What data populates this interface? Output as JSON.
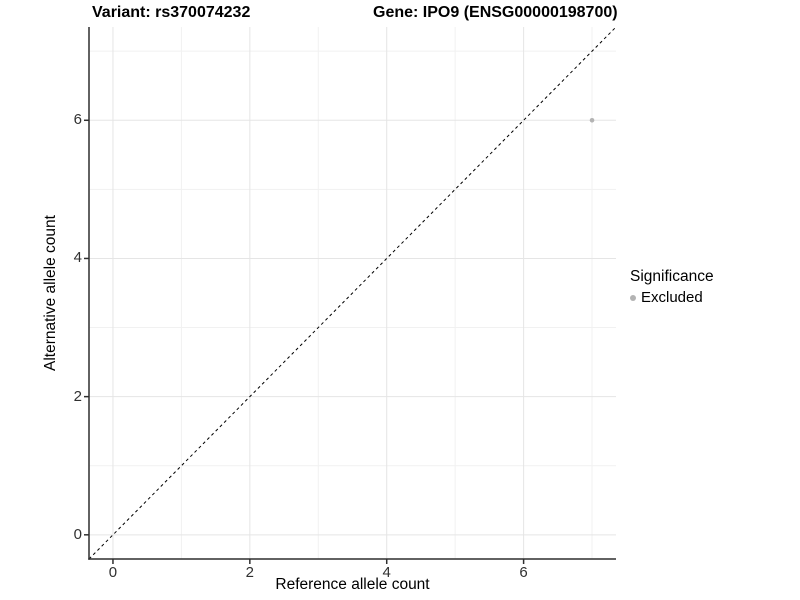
{
  "titles": {
    "variant": "Variant: rs370074232",
    "gene": "Gene: IPO9 (ENSG00000198700)"
  },
  "chart_data": {
    "type": "scatter",
    "xlabel": "Reference allele count",
    "ylabel": "Alternative allele count",
    "xlim": [
      -0.35,
      7.35
    ],
    "ylim": [
      -0.35,
      7.35
    ],
    "x_ticks": [
      0,
      2,
      4,
      6
    ],
    "y_ticks": [
      0,
      2,
      4,
      6
    ],
    "x_minor_ticks": [
      1,
      3,
      5,
      7
    ],
    "y_minor_ticks": [
      1,
      3,
      5,
      7
    ],
    "grid": true,
    "points": [
      {
        "x": 7,
        "y": 6,
        "series": "Excluded"
      }
    ],
    "reference_line": {
      "slope": 1,
      "intercept": 0,
      "style": "dashed"
    },
    "legend": {
      "title": "Significance",
      "position": "right",
      "items": [
        {
          "label": "Excluded",
          "color": "#b3b3b3"
        }
      ]
    },
    "colors": {
      "background": "#ffffff",
      "grid_major": "#e5e5e5",
      "grid_minor": "#f1f1f1",
      "axis_line": "#2f2f2f",
      "tick_mark": "#2f2f2f",
      "point": "#b3b3b3",
      "dashed_line": "#000000"
    }
  }
}
